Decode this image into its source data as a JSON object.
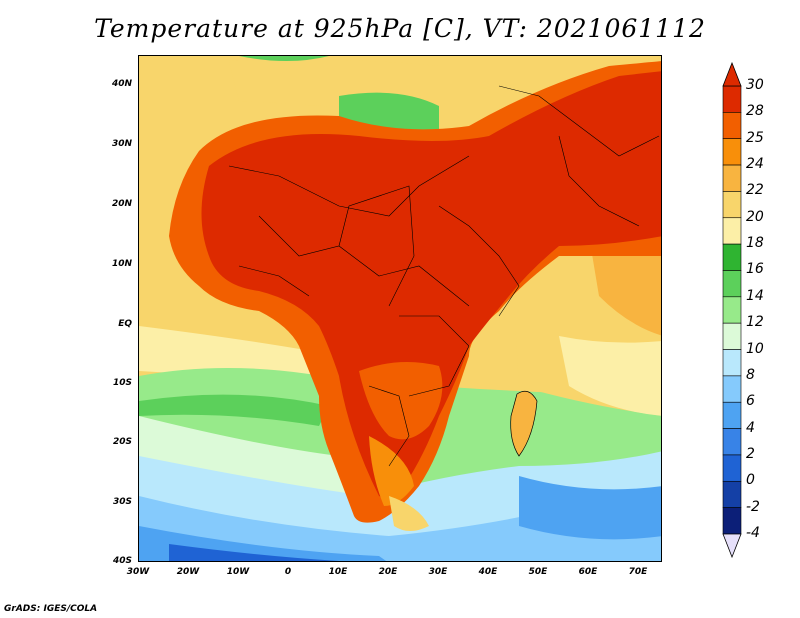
{
  "title": "Temperature at 925hPa [C], VT: 2021061112",
  "footer": "GrADS: IGES/COLA",
  "map": {
    "lat_labels": [
      "40N",
      "30N",
      "20N",
      "10N",
      "EQ",
      "10S",
      "20S",
      "30S",
      "40S"
    ],
    "lon_labels": [
      "30W",
      "20W",
      "10W",
      "0",
      "10E",
      "20E",
      "30E",
      "40E",
      "50E",
      "60E",
      "70E"
    ],
    "extent": {
      "lon": [
        -30,
        75
      ],
      "lat": [
        -40,
        45
      ]
    }
  },
  "colorbar": {
    "labels": [
      "30",
      "28",
      "25",
      "24",
      "22",
      "20",
      "18",
      "16",
      "14",
      "12",
      "10",
      "8",
      "6",
      "4",
      "2",
      "0",
      "-2",
      "-4"
    ],
    "colors": [
      "#dd2a00",
      "#f25f00",
      "#f88f0a",
      "#f8b440",
      "#f8d56b",
      "#fcefa7",
      "#2fb431",
      "#5cd05b",
      "#97ea8a",
      "#dcfad8",
      "#b9e8fc",
      "#85cafc",
      "#4ea3f2",
      "#3883e7",
      "#1f63d4",
      "#1440a6",
      "#0c1f78"
    ],
    "top_color": "#dd2a00",
    "bottom_color": "#e6e0fa"
  },
  "colors": {
    "hot": "#dd2a00",
    "orange": "#f25f00",
    "amber": "#f88f0a",
    "gold": "#f8b440",
    "yellow": "#f8d56b",
    "cream": "#fcefa7",
    "green_dark": "#2fb431",
    "green": "#5cd05b",
    "green_light": "#97ea8a",
    "mint": "#dcfad8",
    "sky": "#b9e8fc",
    "blue_light": "#85cafc",
    "blue": "#4ea3f2",
    "blue_dark": "#1f63d4"
  }
}
